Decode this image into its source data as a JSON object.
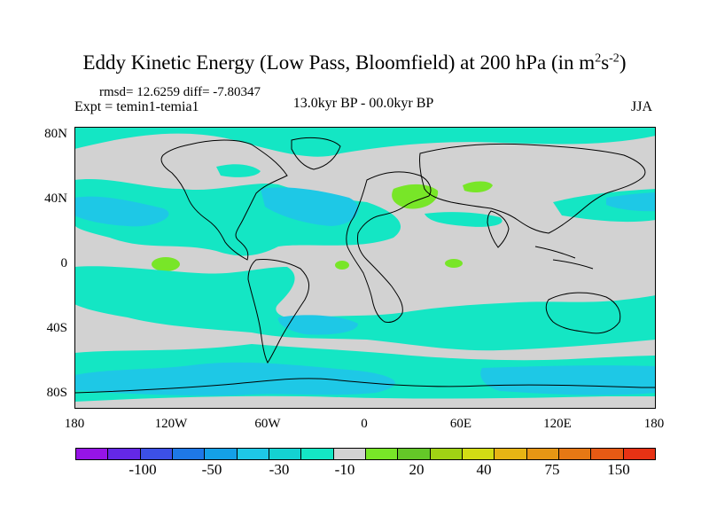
{
  "title": {
    "main": "Eddy Kinetic Energy (Low Pass, Bloomfield) at 200 hPa (in m",
    "sup1": "2",
    "mid": "s",
    "sup2": "-2",
    "end": ")"
  },
  "stats": "rmsd= 12.6259 diff= -7.80347",
  "expt": "Expt = temin1-temia1",
  "period": "13.0kyr BP - 00.0kyr BP",
  "season": "JJA",
  "colors": {
    "ocean_bg": "#d2d2d2",
    "teal": "#14e6c4",
    "blue_light": "#1ec8e6",
    "blue_mid": "#14a0e6",
    "green": "#78e628"
  },
  "chart_data": {
    "type": "heatmap",
    "ylim": [
      -90,
      90
    ],
    "xlim": [
      -180,
      180
    ],
    "ytick_labels": [
      "80N",
      "40N",
      "0",
      "40S",
      "80S"
    ],
    "xtick_labels": [
      "180",
      "120W",
      "60W",
      "0",
      "60E",
      "120E",
      "180"
    ],
    "colorbar": {
      "colors": [
        "#9614e6",
        "#6428e6",
        "#3c50e6",
        "#1e78e6",
        "#14a0e6",
        "#1ec8e6",
        "#14d2d2",
        "#14e6c4",
        "#d2d2d2",
        "#78e628",
        "#64c828",
        "#a0d214",
        "#d2dc14",
        "#e6b414",
        "#e69614",
        "#e67814",
        "#e65a14",
        "#e63214"
      ],
      "labels": [
        "-100",
        "-50",
        "-30",
        "-10",
        "20",
        "40",
        "75",
        "150"
      ]
    }
  }
}
